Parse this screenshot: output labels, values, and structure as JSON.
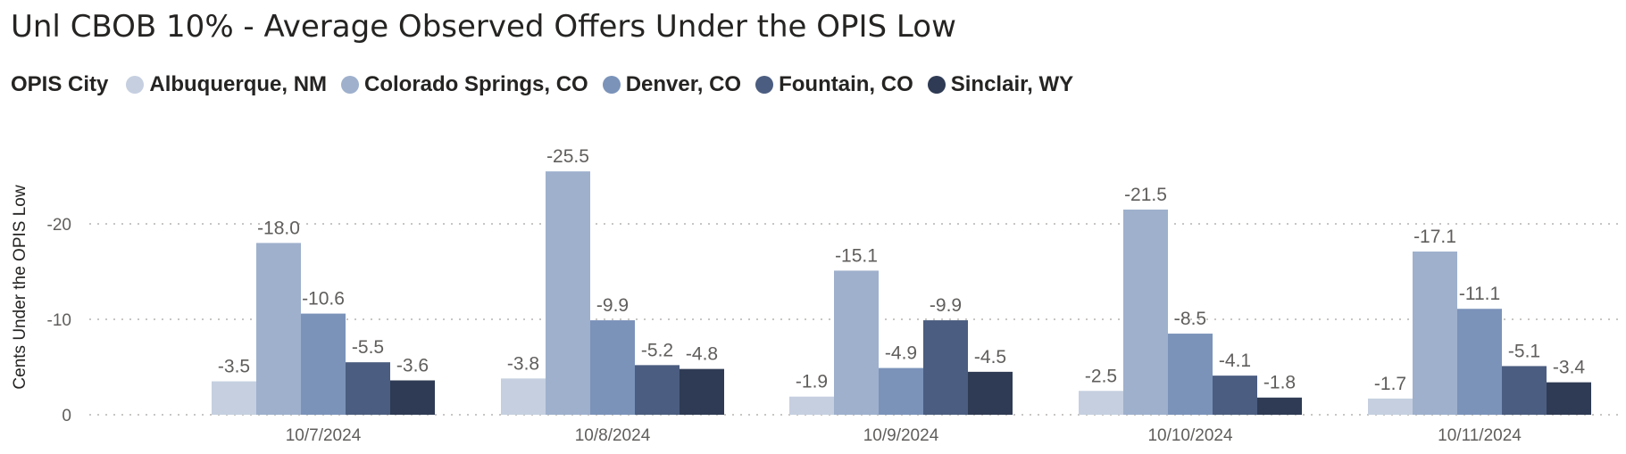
{
  "chart_data": {
    "type": "bar",
    "title": "Unl CBOB 10% - Average Observed Offers Under the OPIS Low",
    "legend_title": "OPIS City",
    "legend_position": "top-left",
    "ylabel": "Cents Under the OPIS Low",
    "xlabel": "",
    "categories": [
      "10/7/2024",
      "10/8/2024",
      "10/9/2024",
      "10/10/2024",
      "10/11/2024"
    ],
    "y_ticks": [
      0,
      -10,
      -20
    ],
    "y_tick_labels": [
      "0",
      "-10",
      "-20"
    ],
    "ylim_magnitude": [
      0,
      28
    ],
    "grid": true,
    "series": [
      {
        "name": "Albuquerque, NM",
        "color": "#c5cfe0",
        "values": [
          -3.5,
          -3.8,
          -1.9,
          -2.5,
          -1.7
        ],
        "labels": [
          "-3.5",
          "-3.8",
          "-1.9",
          "-2.5",
          "-1.7"
        ]
      },
      {
        "name": "Colorado Springs, CO",
        "color": "#9eb0cc",
        "values": [
          -18.0,
          -25.5,
          -15.1,
          -21.5,
          -17.1
        ],
        "labels": [
          "-18.0",
          "-25.5",
          "-15.1",
          "-21.5",
          "-17.1"
        ]
      },
      {
        "name": "Denver, CO",
        "color": "#7b93b9",
        "values": [
          -10.6,
          -9.9,
          -4.9,
          -8.5,
          -11.1
        ],
        "labels": [
          "-10.6",
          "-9.9",
          "-4.9",
          "-8.5",
          "-11.1"
        ]
      },
      {
        "name": "Fountain, CO",
        "color": "#4b5d80",
        "values": [
          -5.5,
          -5.2,
          -9.9,
          -4.1,
          -5.1
        ],
        "labels": [
          "-5.5",
          "-5.2",
          "-9.9",
          "-4.1",
          "-5.1"
        ]
      },
      {
        "name": "Sinclair, WY",
        "color": "#2f3b54",
        "values": [
          -3.6,
          -4.8,
          -4.5,
          -1.8,
          -3.4
        ],
        "labels": [
          "-3.6",
          "-4.8",
          "-4.5",
          "-1.8",
          "-3.4"
        ]
      }
    ]
  }
}
